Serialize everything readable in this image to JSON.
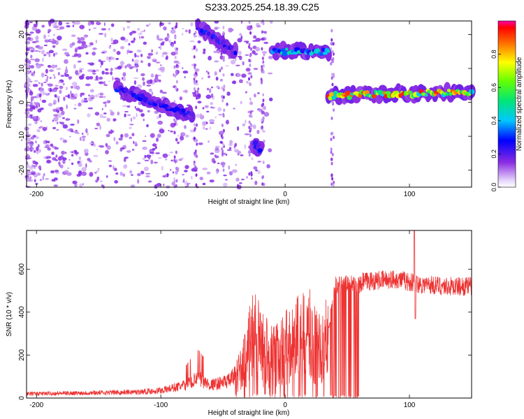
{
  "title": "S233.2025.254.18.39.C25",
  "chart_data": [
    {
      "type": "heatmap",
      "xlabel": "Height of straight line (km)",
      "ylabel": "Frequency (Hz)",
      "xlim": [
        -208,
        150
      ],
      "ylim": [
        -25,
        24
      ],
      "xticks": [
        -200,
        -100,
        0,
        100
      ],
      "yticks": [
        -20,
        -10,
        0,
        10,
        20
      ],
      "xtick_labels": [
        "-200",
        "-100",
        "0",
        "100"
      ],
      "ytick_labels": [
        "-20",
        "-10",
        "0",
        "10",
        "20"
      ],
      "colorbar": {
        "label": "Normalized spectral amplitude",
        "range": [
          0,
          1
        ],
        "ticks": [
          0.0,
          0.2,
          0.4,
          0.6,
          0.8
        ],
        "tick_labels": [
          "0.0",
          "0.2",
          "0.4",
          "0.6",
          "0.8"
        ]
      },
      "features": [
        {
          "x": [
            -135,
            -75
          ],
          "y": [
            4,
            -4
          ],
          "amp": 0.3
        },
        {
          "x": [
            -70,
            -40
          ],
          "y": [
            22,
            15
          ],
          "amp": 0.3
        },
        {
          "x": [
            -25,
            -20
          ],
          "y": [
            -12,
            -14
          ],
          "amp": 0.3
        },
        {
          "x": [
            -10,
            35
          ],
          "y": [
            15,
            15
          ],
          "amp": 0.5
        },
        {
          "x": [
            35,
            150
          ],
          "y": [
            2,
            3
          ],
          "amp": 0.9
        }
      ]
    },
    {
      "type": "line",
      "xlabel": "Height of straight line (km)",
      "ylabel": "SNR (10 * v/v)",
      "xlim": [
        -208,
        150
      ],
      "ylim": [
        0,
        780
      ],
      "xticks": [
        -200,
        -100,
        0,
        100
      ],
      "yticks": [
        0,
        200,
        400,
        600
      ],
      "xtick_labels": [
        "-200",
        "-100",
        "0",
        "100"
      ],
      "ytick_labels": [
        "0",
        "200",
        "400",
        "600"
      ],
      "series": [
        {
          "name": "SNR",
          "color": "#ee3333",
          "x": [
            -208,
            -180,
            -150,
            -120,
            -100,
            -80,
            -70,
            -60,
            -45,
            -35,
            -30,
            -25,
            -20,
            -15,
            -10,
            0,
            10,
            20,
            30,
            35,
            40,
            50,
            60,
            70,
            80,
            90,
            100,
            110,
            120,
            130,
            140,
            150
          ],
          "y": [
            20,
            22,
            25,
            28,
            35,
            60,
            90,
            60,
            80,
            140,
            230,
            300,
            260,
            230,
            200,
            240,
            280,
            300,
            220,
            330,
            540,
            545,
            540,
            545,
            550,
            555,
            540,
            530,
            525,
            520,
            520,
            520
          ]
        }
      ]
    }
  ]
}
